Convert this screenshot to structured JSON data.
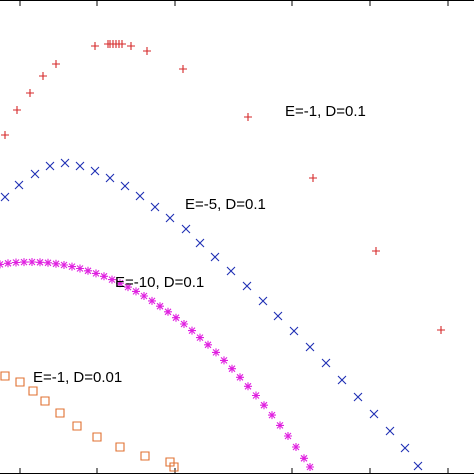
{
  "chart_data": {
    "type": "scatter",
    "xlim": [
      0,
      474
    ],
    "ylim": [
      0,
      474
    ],
    "xticks": [
      20,
      97,
      175,
      292,
      370,
      448
    ],
    "series": [
      {
        "name": "E=-1, D=0.1",
        "color": "#d62728",
        "marker": "plus",
        "x": [
          5,
          17,
          30,
          43,
          56,
          95,
          108,
          110,
          113,
          116,
          119,
          122,
          131,
          147,
          183,
          248,
          313,
          376,
          441
        ],
        "values": [
          339,
          364,
          381,
          398,
          410,
          428,
          430,
          430,
          430,
          430,
          430,
          430,
          428,
          423,
          405,
          357,
          296,
          223,
          144
        ]
      },
      {
        "name": "E=-5, D=0.1",
        "color": "#1f2fb4",
        "marker": "cross",
        "x": [
          5,
          19,
          35,
          50,
          65,
          80,
          95,
          110,
          125,
          140,
          155,
          170,
          186,
          200,
          215,
          231,
          247,
          263,
          278,
          294,
          310,
          326,
          342,
          358,
          374,
          390,
          405,
          418
        ],
        "values": [
          277,
          289,
          300,
          308,
          311,
          308,
          303,
          296,
          288,
          278,
          267,
          256,
          245,
          231,
          217,
          203,
          188,
          173,
          158,
          143,
          127,
          111,
          94,
          77,
          60,
          43,
          26,
          8
        ]
      },
      {
        "name": "E=-10, D=0.1",
        "color": "#e020e0",
        "marker": "star",
        "x": [
          0,
          8,
          16,
          24,
          32,
          40,
          48,
          56,
          64,
          72,
          80,
          88,
          96,
          104,
          112,
          120,
          128,
          136,
          144,
          152,
          160,
          168,
          176,
          184,
          192,
          200,
          208,
          216,
          224,
          232,
          240,
          248,
          256,
          264,
          272,
          280,
          288,
          296,
          304,
          310
        ],
        "values": [
          209.6,
          210.7,
          211.5,
          211.9,
          212,
          211.7,
          211.2,
          210.2,
          209,
          207.4,
          205.5,
          203.2,
          200.6,
          197.7,
          194.4,
          190.8,
          186.9,
          182.6,
          178,
          173.1,
          167.8,
          162.2,
          156.3,
          150,
          143.4,
          136.4,
          129.2,
          121.6,
          113.6,
          105.3,
          96.7,
          87.7,
          78.5,
          68.8,
          58.9,
          48.6,
          38,
          27,
          15.7,
          7
        ]
      },
      {
        "name": "E=-1, D=0.01",
        "color": "#e07030",
        "marker": "square",
        "x": [
          5,
          20,
          33,
          45,
          60,
          77,
          97,
          120,
          145,
          170,
          174
        ],
        "values": [
          98,
          92,
          83,
          73,
          61,
          48,
          37,
          27,
          18,
          12,
          7
        ]
      }
    ]
  }
}
